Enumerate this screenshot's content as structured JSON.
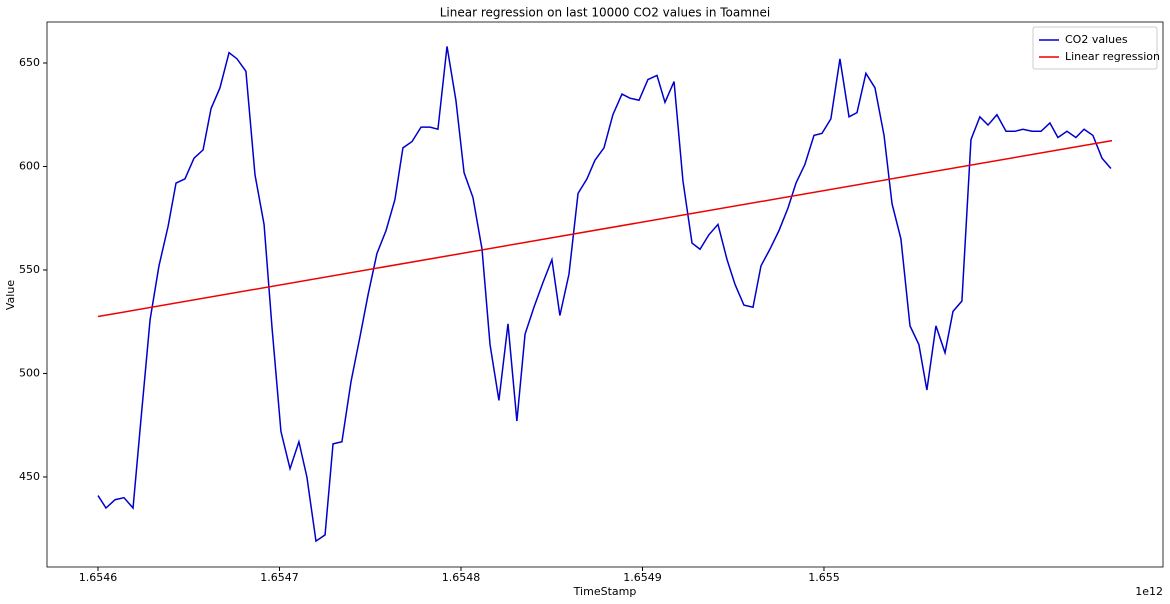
{
  "chart_data": {
    "type": "line",
    "title": "Linear regression on last 10000 CO2 values in Toamnei",
    "x_label": "TimeStamp",
    "y_label": "Value",
    "x_offset_label": "1e12",
    "xlim": [
      1.6545719,
      1.6551868
    ],
    "ylim": [
      406.5,
      669.8
    ],
    "xticks": [
      1.6546,
      1.6547,
      1.6548,
      1.6549,
      1.655
    ],
    "yticks": [
      450,
      500,
      550,
      600,
      650
    ],
    "legend": "upper right",
    "grid": false,
    "series": [
      {
        "name": "CO2 values",
        "color": "#0000cc",
        "x": [
          1.6546,
          1.6546044,
          1.6546094,
          1.6546143,
          1.6546193,
          1.6546237,
          1.6546287,
          1.6546336,
          1.6546386,
          1.654643,
          1.6546479,
          1.6546529,
          1.6546579,
          1.6546623,
          1.6546672,
          1.6546722,
          1.6546766,
          1.6546815,
          1.6546865,
          1.6546915,
          1.6546959,
          1.6547008,
          1.6547058,
          1.6547107,
          1.6547151,
          1.6547201,
          1.6547251,
          1.6547295,
          1.6547344,
          1.6547394,
          1.6547444,
          1.6547488,
          1.6547537,
          1.6547587,
          1.6547636,
          1.654768,
          1.654773,
          1.654778,
          1.6547829,
          1.6547873,
          1.6547923,
          1.6547972,
          1.6548017,
          1.6548066,
          1.6548116,
          1.654816,
          1.6548209,
          1.6548259,
          1.6548308,
          1.6548353,
          1.6548402,
          1.6548452,
          1.6548501,
          1.6548545,
          1.6548595,
          1.6548645,
          1.6548694,
          1.6548738,
          1.6548788,
          1.6548837,
          1.6548887,
          1.6548931,
          1.6548981,
          1.654903,
          1.654908,
          1.6549124,
          1.6549174,
          1.6549223,
          1.6549273,
          1.6549317,
          1.6549366,
          1.6549416,
          1.6549466,
          1.654951,
          1.6549559,
          1.6549609,
          1.6549653,
          1.6549702,
          1.6549752,
          1.6549802,
          1.6549846,
          1.6549895,
          1.6549945,
          1.6549989,
          1.6550038,
          1.6550088,
          1.6550138,
          1.6550182,
          1.6550231,
          1.6550281,
          1.6550331,
          1.6550375,
          1.6550424,
          1.6550474,
          1.6550523,
          1.6550567,
          1.6550617,
          1.6550667,
          1.6550711,
          1.655076,
          1.655081,
          1.6550859,
          1.6550904,
          1.6550953,
          1.6551003,
          1.6551052,
          1.6551096,
          1.6551146,
          1.6551196,
          1.6551245,
          1.6551289,
          1.6551339,
          1.6551388,
          1.6551433,
          1.6551482,
          1.6551532,
          1.6551581
        ],
        "values": [
          441,
          435,
          439,
          440,
          435,
          478,
          526,
          552,
          571,
          592,
          594,
          604,
          608,
          628,
          638,
          655,
          652,
          646,
          596,
          572,
          522,
          472,
          454,
          467,
          450,
          419,
          422,
          466,
          467,
          496,
          518,
          538,
          558,
          569,
          584,
          609,
          612,
          619,
          619,
          618,
          658,
          632,
          597,
          585,
          560,
          514,
          487,
          524,
          477,
          519,
          532,
          544,
          555,
          528,
          548,
          587,
          594,
          603,
          609,
          625,
          635,
          633,
          632,
          642,
          644,
          631,
          641,
          593,
          563,
          560,
          567,
          572,
          555,
          543,
          533,
          532,
          552,
          560,
          569,
          580,
          592,
          601,
          615,
          616,
          623,
          652,
          624,
          626,
          645,
          638,
          615,
          582,
          565,
          523,
          514,
          492,
          523,
          510,
          530,
          535,
          613,
          624,
          620,
          625,
          617,
          617,
          618,
          617,
          617,
          621,
          614,
          617,
          614,
          618,
          615,
          604,
          599
        ]
      },
      {
        "name": "Linear regression",
        "color": "#ee0000",
        "x": [
          1.6546,
          1.6551587
        ],
        "values": [
          527.5,
          612.5
        ]
      }
    ]
  }
}
